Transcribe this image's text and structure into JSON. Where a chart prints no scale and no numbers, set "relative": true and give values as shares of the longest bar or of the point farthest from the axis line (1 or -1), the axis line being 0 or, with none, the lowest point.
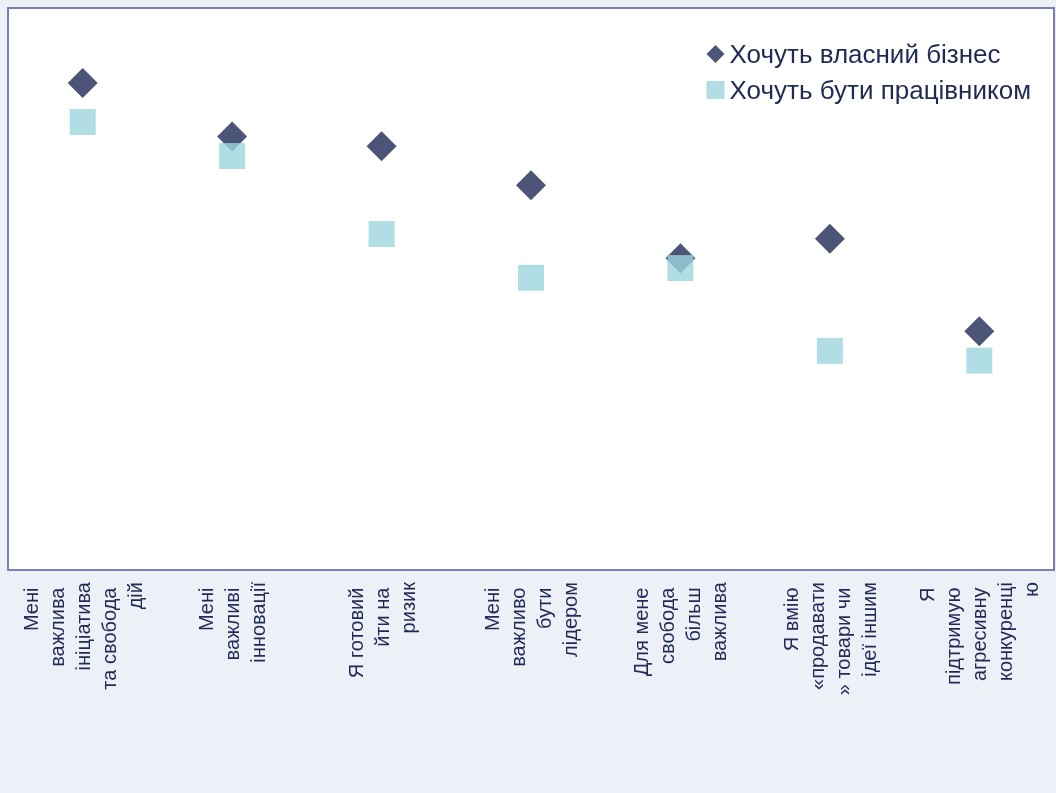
{
  "chart_data": {
    "type": "scatter",
    "relative": true,
    "legend": "top right",
    "grid": false,
    "categories": [
      "Мені важлива ініціатива та свобода дій",
      "Мені важливі інновації",
      "Я готовий йти на ризик",
      "Мені важливо бути лідером",
      "Для мене свобода більш важлива",
      "Я вмію «продавати» товари чи ідеї іншим",
      "Я підтримую агресивну конкуренцію"
    ],
    "series": [
      {
        "name": "Хочуть власний бізнес",
        "color": "#1f2a55",
        "marker": "diamond",
        "values": [
          1.0,
          0.89,
          0.87,
          0.79,
          0.64,
          0.68,
          0.49
        ]
      },
      {
        "name": "Хочуть бути працівником",
        "color": "#9dd5de",
        "marker": "square",
        "values": [
          0.92,
          0.85,
          0.69,
          0.6,
          0.62,
          0.45,
          0.43
        ]
      }
    ]
  }
}
